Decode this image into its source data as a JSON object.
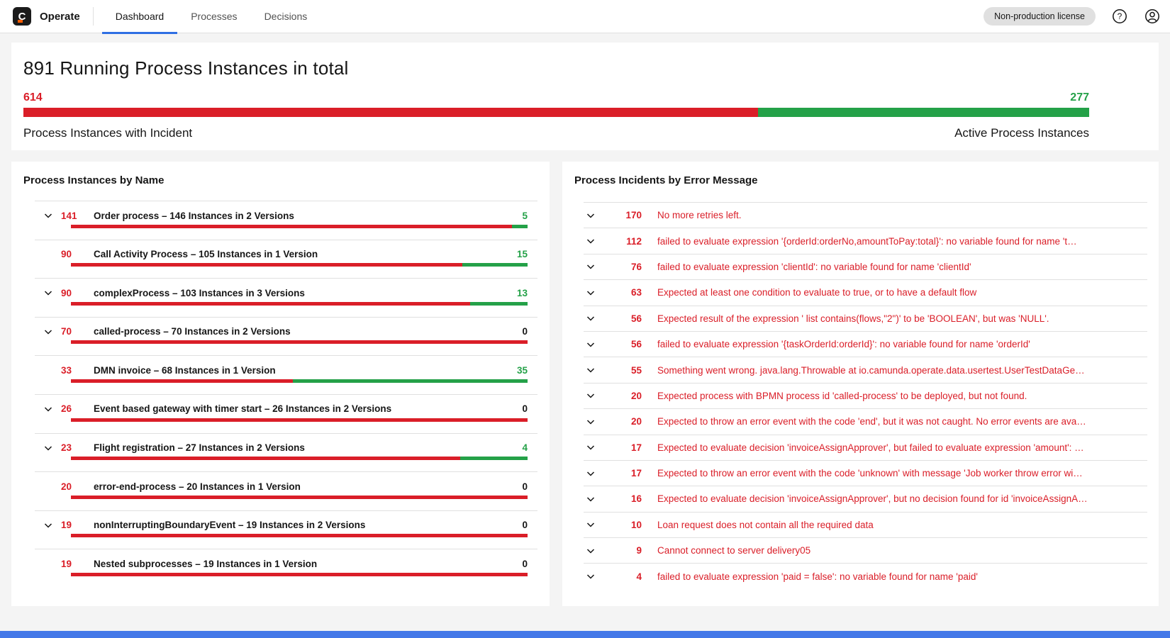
{
  "topnav": {
    "app_name": "Operate",
    "logo_letter": "C",
    "tabs": [
      {
        "label": "Dashboard",
        "active": true
      },
      {
        "label": "Processes",
        "active": false
      },
      {
        "label": "Decisions",
        "active": false
      }
    ],
    "license_badge": "Non-production license"
  },
  "summary": {
    "title": "891 Running Process Instances in total",
    "incidents_count": 614,
    "active_count": 277,
    "incidents_label": "Process Instances with Incident",
    "active_label": "Active Process Instances"
  },
  "instances_panel": {
    "title": "Process Instances by Name",
    "rows": [
      {
        "incidents": 141,
        "active": 5,
        "name": "Order process – 146 Instances in 2 Versions",
        "expandable": true
      },
      {
        "incidents": 90,
        "active": 15,
        "name": "Call Activity Process – 105 Instances in 1 Version",
        "expandable": false
      },
      {
        "incidents": 90,
        "active": 13,
        "name": "complexProcess – 103 Instances in 3 Versions",
        "expandable": true
      },
      {
        "incidents": 70,
        "active": 0,
        "name": "called-process – 70 Instances in 2 Versions",
        "expandable": true
      },
      {
        "incidents": 33,
        "active": 35,
        "name": "DMN invoice – 68 Instances in 1 Version",
        "expandable": false
      },
      {
        "incidents": 26,
        "active": 0,
        "name": "Event based gateway with timer start – 26 Instances in 2 Versions",
        "expandable": true
      },
      {
        "incidents": 23,
        "active": 4,
        "name": "Flight registration – 27 Instances in 2 Versions",
        "expandable": true
      },
      {
        "incidents": 20,
        "active": 0,
        "name": "error-end-process – 20 Instances in 1 Version",
        "expandable": false
      },
      {
        "incidents": 19,
        "active": 0,
        "name": "nonInterruptingBoundaryEvent – 19 Instances in 2 Versions",
        "expandable": true
      },
      {
        "incidents": 19,
        "active": 0,
        "name": "Nested subprocesses – 19 Instances in 1 Version",
        "expandable": false
      }
    ]
  },
  "incidents_panel": {
    "title": "Process Incidents by Error Message",
    "rows": [
      {
        "count": 170,
        "message": "No more retries left."
      },
      {
        "count": 112,
        "message": "failed to evaluate expression '{orderId:orderNo,amountToPay:total}': no variable found for name 't…"
      },
      {
        "count": 76,
        "message": "failed to evaluate expression 'clientId': no variable found for name 'clientId'"
      },
      {
        "count": 63,
        "message": "Expected at least one condition to evaluate to true, or to have a default flow"
      },
      {
        "count": 56,
        "message": "Expected result of the expression ' list contains(flows,\"2\")' to be 'BOOLEAN', but was 'NULL'."
      },
      {
        "count": 56,
        "message": "failed to evaluate expression '{taskOrderId:orderId}': no variable found for name 'orderId'"
      },
      {
        "count": 55,
        "message": "Something went wrong. java.lang.Throwable at io.camunda.operate.data.usertest.UserTestDataGe…"
      },
      {
        "count": 20,
        "message": "Expected process with BPMN process id 'called-process' to be deployed, but not found."
      },
      {
        "count": 20,
        "message": "Expected to throw an error event with the code 'end', but it was not caught. No error events are ava…"
      },
      {
        "count": 17,
        "message": "Expected to evaluate decision 'invoiceAssignApprover', but failed to evaluate expression 'amount': …"
      },
      {
        "count": 17,
        "message": "Expected to throw an error event with the code 'unknown' with message 'Job worker throw error wi…"
      },
      {
        "count": 16,
        "message": "Expected to evaluate decision 'invoiceAssignApprover', but no decision found for id 'invoiceAssignA…"
      },
      {
        "count": 10,
        "message": "Loan request does not contain all the required data"
      },
      {
        "count": 9,
        "message": "Cannot connect to server delivery05"
      },
      {
        "count": 4,
        "message": "failed to evaluate expression 'paid = false': no variable found for name 'paid'"
      }
    ]
  },
  "colors": {
    "incident_red": "#da1e28",
    "active_green": "#24a148",
    "tab_active_blue": "#2e6fe3",
    "bottom_bar_blue": "#4378e8",
    "license_badge_bg": "#e0e0e0"
  }
}
